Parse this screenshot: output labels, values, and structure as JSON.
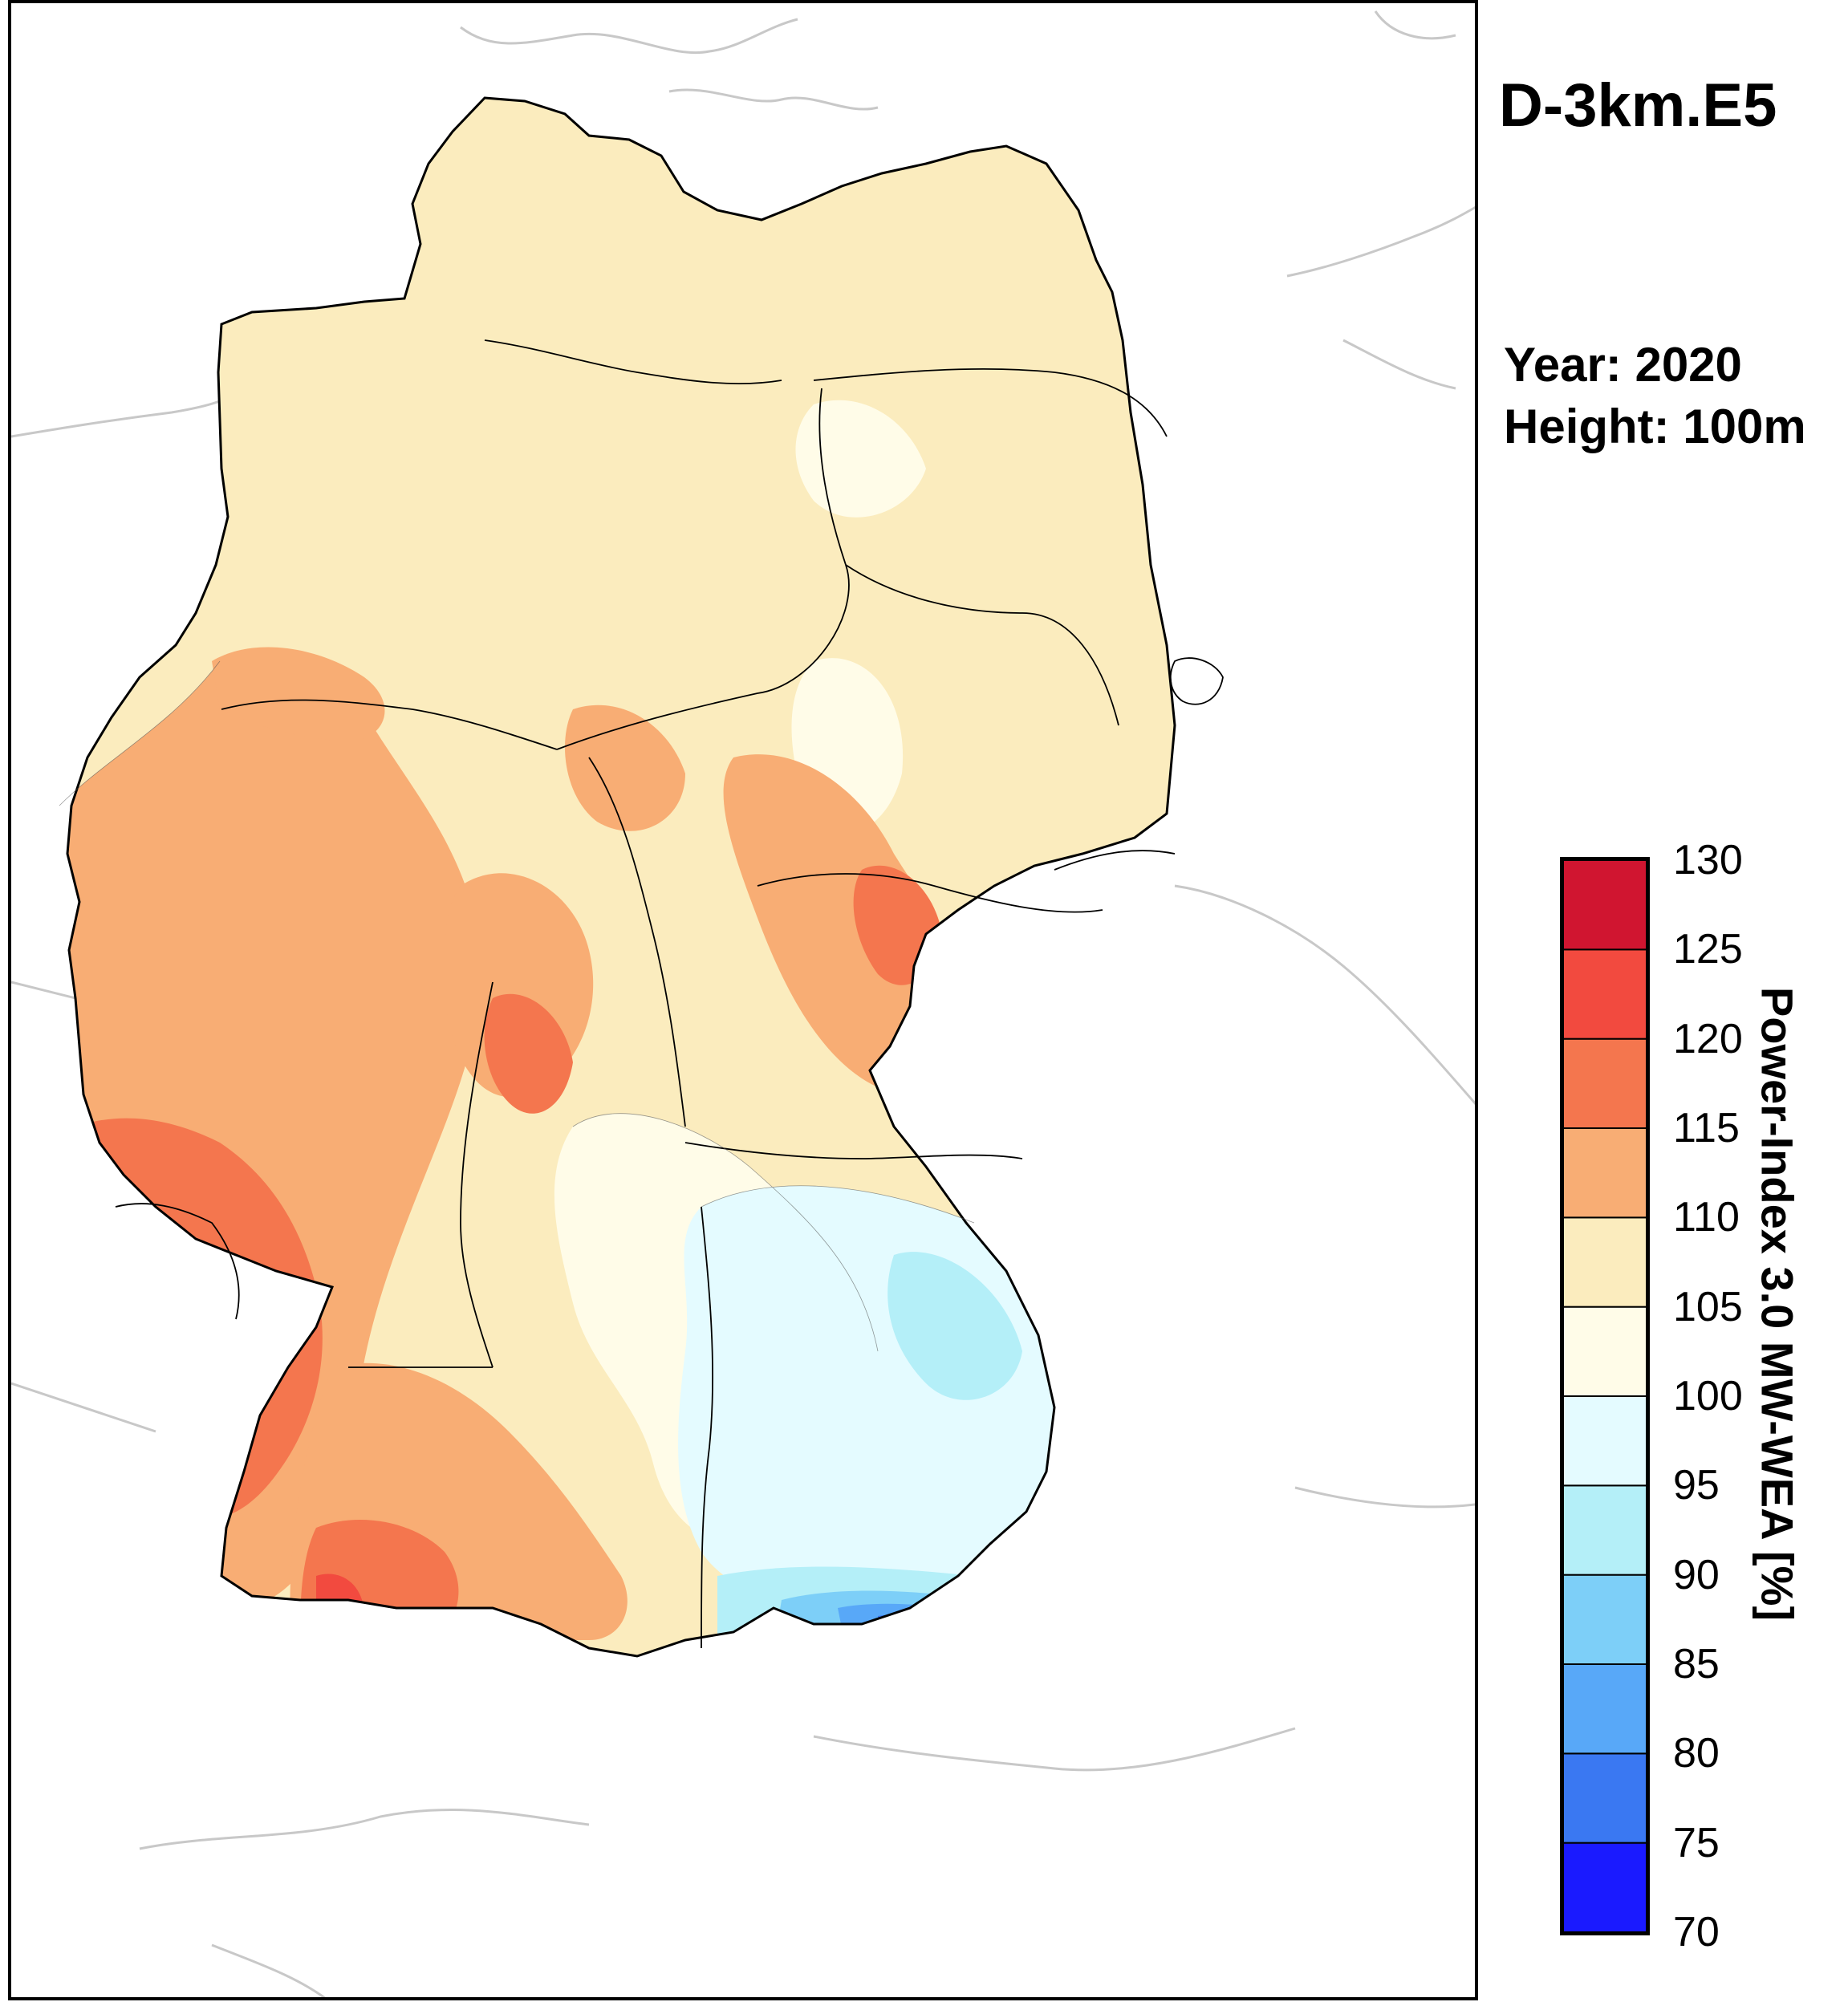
{
  "title": "D-3km.E5",
  "info": {
    "year": "Year: 2020",
    "height": "Height: 100m"
  },
  "colorbar": {
    "label": "Power-Index 3.0 MW-WEA [%]",
    "ticks": [
      "70",
      "75",
      "80",
      "85",
      "90",
      "95",
      "100",
      "105",
      "110",
      "115",
      "120",
      "125",
      "130"
    ],
    "colors": [
      "#1a1aff",
      "#3a78f2",
      "#58a8f8",
      "#7dcff8",
      "#b4eff8",
      "#e4fbff",
      "#fffce8",
      "#fbecbe",
      "#f8ad74",
      "#f4764e",
      "#f24a3f",
      "#d01530"
    ]
  },
  "map_colors": {
    "border": "#000000",
    "neighbor_border": "#c8c8c8"
  }
}
